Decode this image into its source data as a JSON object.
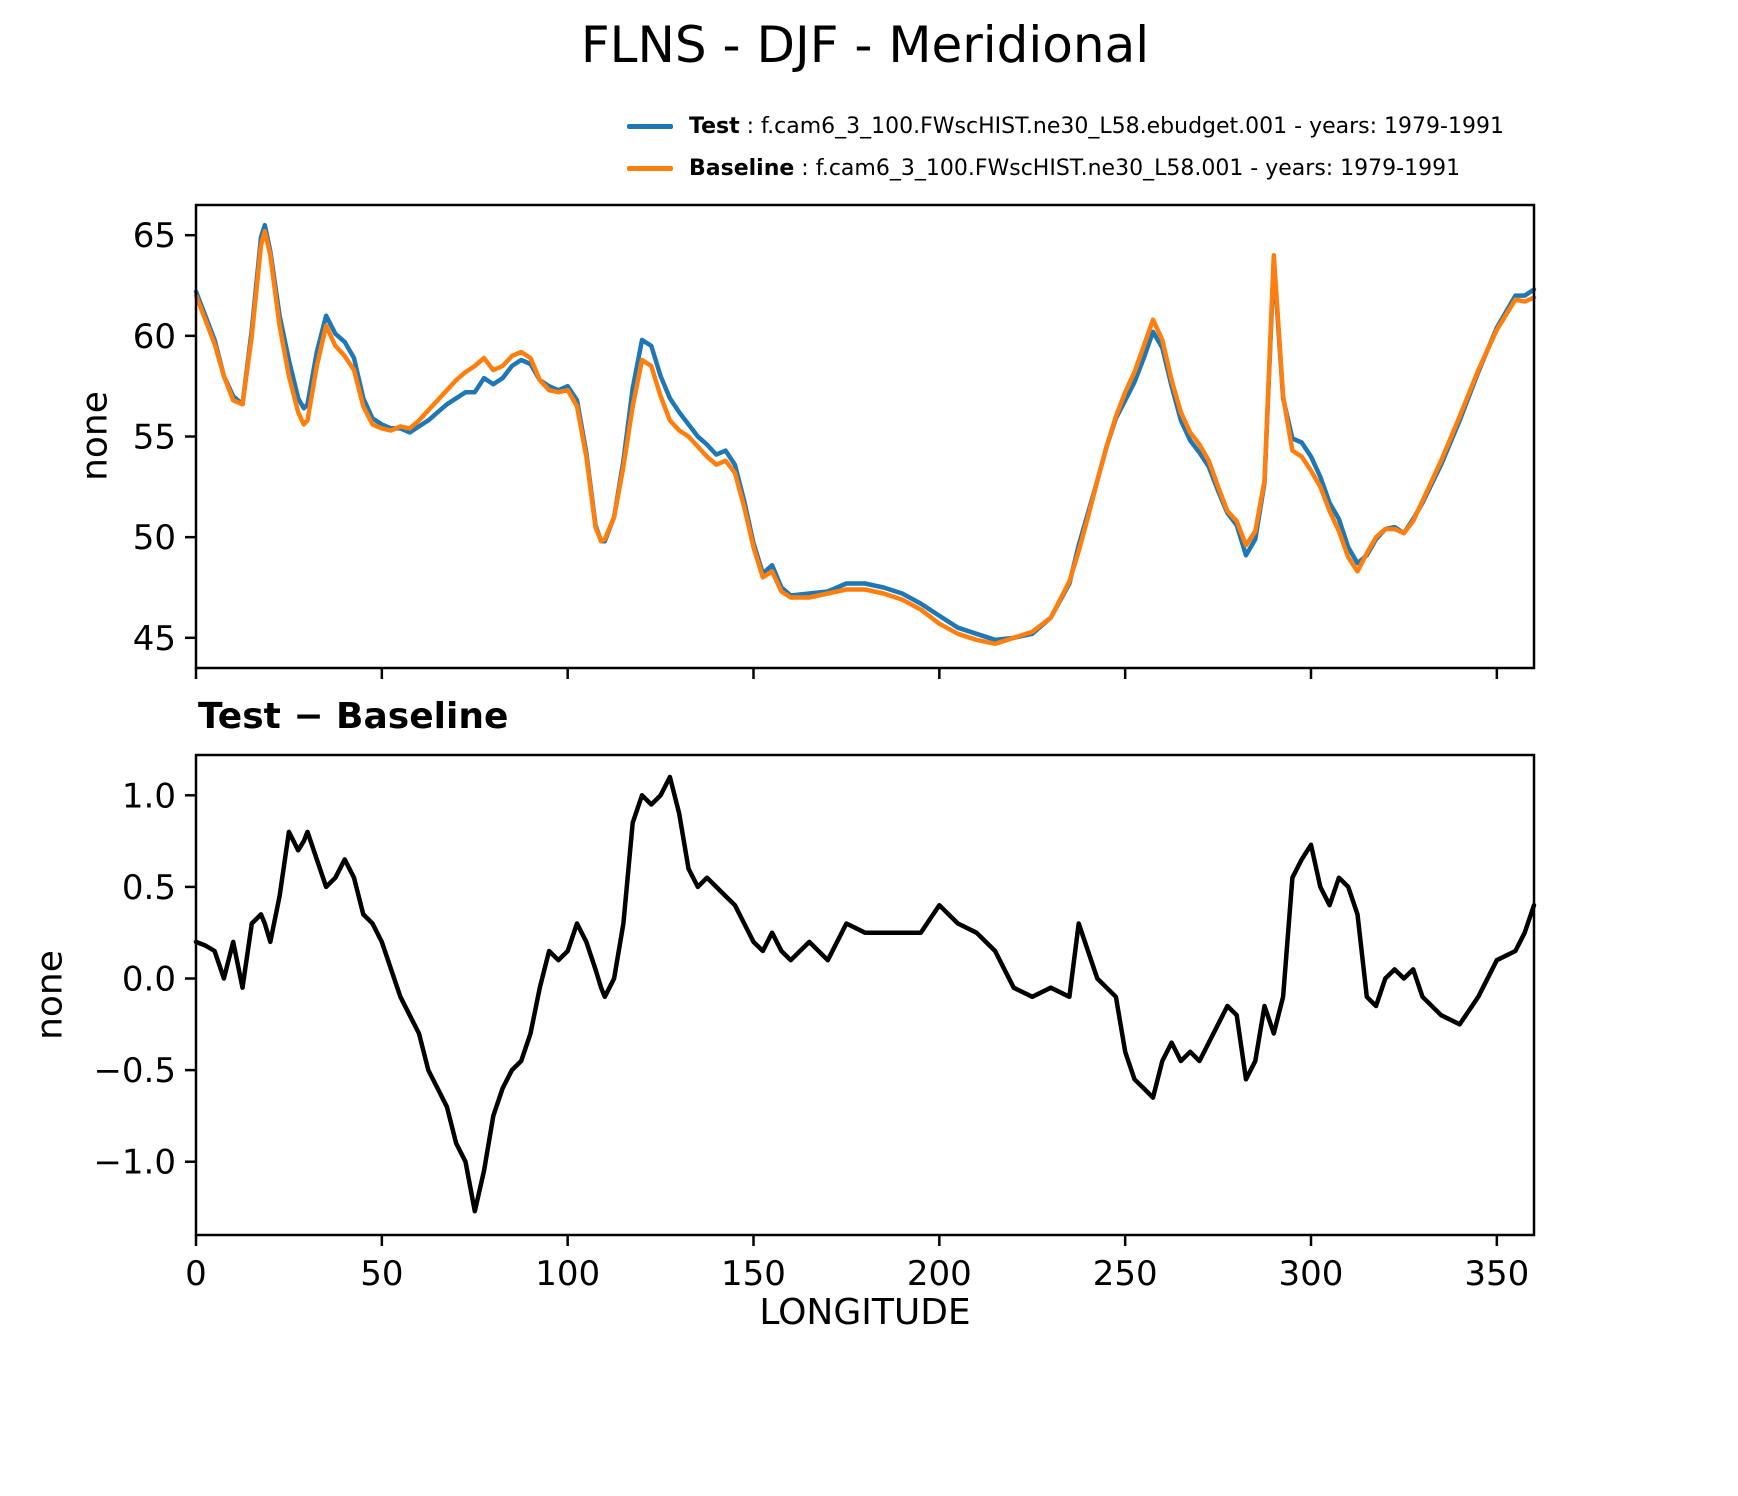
{
  "page": {
    "title": "FLNS - DJF - Meridional"
  },
  "legend": {
    "items": [
      {
        "label": "Test",
        "desc": " : f.cam6_3_100.FWscHIST.ne30_L58.ebudget.001 - years: 1979-1991",
        "color": "#1f77b4"
      },
      {
        "label": "Baseline",
        "desc": " : f.cam6_3_100.FWscHIST.ne30_L58.001 - years: 1979-1991",
        "color": "#ff7f0e"
      }
    ]
  },
  "chart_data": [
    {
      "type": "line",
      "title": "",
      "xlabel": "",
      "ylabel": "none",
      "xlim": [
        0,
        360
      ],
      "ylim": [
        43.5,
        66.5
      ],
      "xticks": [
        0,
        50,
        100,
        150,
        200,
        250,
        300,
        350
      ],
      "yticks": [
        45,
        50,
        55,
        60,
        65
      ],
      "grid": false,
      "legend_position": "top",
      "x": [
        0,
        2.5,
        5,
        7.5,
        10,
        12.5,
        15,
        17.5,
        18.5,
        20,
        22.5,
        25,
        27.5,
        29,
        30,
        32.5,
        35,
        37.5,
        40,
        42.5,
        45,
        47.5,
        50,
        52.5,
        55,
        57.5,
        60,
        62.5,
        65,
        67.5,
        70,
        72.5,
        75,
        77.5,
        80,
        82.5,
        85,
        87.5,
        90,
        92.5,
        95,
        97.5,
        100,
        102.5,
        105,
        107.5,
        109,
        110,
        112.5,
        115,
        117.5,
        120,
        122.5,
        125,
        127.5,
        130,
        132.5,
        135,
        137.5,
        140,
        142.5,
        145,
        147.5,
        150,
        152.5,
        155,
        157.5,
        160,
        165,
        170,
        175,
        180,
        185,
        190,
        195,
        200,
        205,
        210,
        215,
        220,
        225,
        230,
        235,
        237.5,
        240,
        242.5,
        245,
        247.5,
        250,
        252.5,
        255,
        257.5,
        260,
        262.5,
        265,
        267.5,
        270,
        272.5,
        275,
        277.5,
        280,
        282.5,
        285,
        287.5,
        290,
        292.5,
        295,
        297.5,
        300,
        302.5,
        305,
        307.5,
        310,
        312.5,
        315,
        317.5,
        320,
        322.5,
        325,
        327.5,
        330,
        335,
        340,
        345,
        350,
        355,
        357.5,
        360
      ],
      "series": [
        {
          "name": "Test",
          "color": "#1f77b4",
          "values": [
            62.2,
            61.0,
            59.8,
            58.0,
            57.0,
            56.6,
            60.3,
            64.9,
            65.5,
            64.2,
            61.0,
            58.8,
            56.9,
            56.4,
            56.6,
            59.2,
            61.0,
            60.1,
            59.7,
            58.9,
            56.9,
            55.9,
            55.6,
            55.4,
            55.4,
            55.2,
            55.5,
            55.8,
            56.2,
            56.6,
            56.9,
            57.2,
            57.2,
            57.9,
            57.6,
            57.9,
            58.5,
            58.8,
            58.6,
            57.8,
            57.5,
            57.3,
            57.5,
            56.8,
            54.2,
            50.6,
            49.8,
            49.8,
            51.0,
            53.8,
            57.4,
            59.8,
            59.5,
            58.0,
            56.9,
            56.2,
            55.6,
            55.0,
            54.6,
            54.1,
            54.3,
            53.6,
            51.8,
            49.7,
            48.2,
            48.6,
            47.5,
            47.1,
            47.2,
            47.3,
            47.7,
            47.7,
            47.5,
            47.2,
            46.7,
            46.1,
            45.5,
            45.2,
            44.9,
            45.0,
            45.2,
            46.0,
            47.7,
            49.6,
            51.2,
            52.8,
            54.5,
            55.9,
            56.8,
            57.7,
            58.9,
            60.2,
            59.4,
            57.5,
            55.8,
            54.8,
            54.2,
            53.5,
            52.3,
            51.2,
            50.6,
            49.1,
            49.9,
            52.7,
            63.7,
            56.9,
            54.9,
            54.7,
            54.0,
            53.0,
            51.7,
            50.9,
            49.5,
            48.7,
            49.1,
            49.9,
            50.4,
            50.5,
            50.2,
            50.9,
            51.7,
            53.6,
            55.8,
            58.2,
            60.4,
            62.0,
            62.0,
            62.3
          ]
        },
        {
          "name": "Baseline",
          "color": "#ff7f0e",
          "values": [
            62.0,
            60.8,
            59.6,
            58.0,
            56.8,
            56.6,
            60.0,
            64.5,
            65.2,
            64.0,
            60.5,
            58.0,
            56.2,
            55.6,
            55.8,
            58.5,
            60.5,
            59.5,
            59.0,
            58.3,
            56.5,
            55.6,
            55.4,
            55.3,
            55.5,
            55.4,
            55.8,
            56.3,
            56.8,
            57.3,
            57.8,
            58.2,
            58.5,
            58.9,
            58.3,
            58.5,
            59.0,
            59.2,
            58.9,
            57.8,
            57.3,
            57.2,
            57.3,
            56.5,
            54.0,
            50.5,
            49.8,
            49.9,
            51.0,
            53.5,
            56.5,
            58.8,
            58.5,
            57.0,
            55.8,
            55.3,
            55.0,
            54.5,
            54.0,
            53.6,
            53.8,
            53.2,
            51.5,
            49.5,
            48.0,
            48.3,
            47.3,
            47.0,
            47.0,
            47.2,
            47.4,
            47.4,
            47.2,
            46.9,
            46.4,
            45.7,
            45.2,
            44.9,
            44.7,
            45.0,
            45.3,
            46.0,
            47.8,
            49.3,
            51.0,
            52.8,
            54.5,
            56.0,
            57.2,
            58.2,
            59.5,
            60.8,
            59.8,
            57.8,
            56.2,
            55.2,
            54.6,
            53.8,
            52.5,
            51.3,
            50.8,
            49.6,
            50.3,
            52.8,
            64.0,
            57.0,
            54.3,
            54.0,
            53.3,
            52.5,
            51.3,
            50.3,
            49.0,
            48.3,
            49.2,
            50.0,
            50.4,
            50.4,
            50.2,
            50.8,
            51.8,
            53.8,
            56.0,
            58.3,
            60.3,
            61.8,
            61.7,
            61.9
          ]
        }
      ]
    },
    {
      "type": "line",
      "title": "Test − Baseline",
      "xlabel": "LONGITUDE",
      "ylabel": "none",
      "xlim": [
        0,
        360
      ],
      "ylim": [
        -1.4,
        1.22
      ],
      "xticks": [
        0,
        50,
        100,
        150,
        200,
        250,
        300,
        350
      ],
      "yticks": [
        -1.0,
        -0.5,
        0.0,
        0.5,
        1.0
      ],
      "grid": false,
      "x": [
        0,
        2.5,
        5,
        7.5,
        10,
        12.5,
        15,
        17.5,
        18.5,
        20,
        22.5,
        25,
        27.5,
        29,
        30,
        32.5,
        35,
        37.5,
        40,
        42.5,
        45,
        47.5,
        50,
        52.5,
        55,
        57.5,
        60,
        62.5,
        65,
        67.5,
        70,
        72.5,
        75,
        77.5,
        80,
        82.5,
        85,
        87.5,
        90,
        92.5,
        95,
        97.5,
        100,
        102.5,
        105,
        107.5,
        109,
        110,
        112.5,
        115,
        117.5,
        120,
        122.5,
        125,
        127.5,
        130,
        132.5,
        135,
        137.5,
        140,
        142.5,
        145,
        147.5,
        150,
        152.5,
        155,
        157.5,
        160,
        165,
        170,
        175,
        180,
        185,
        190,
        195,
        200,
        205,
        210,
        215,
        220,
        225,
        230,
        235,
        237.5,
        240,
        242.5,
        245,
        247.5,
        250,
        252.5,
        255,
        257.5,
        260,
        262.5,
        265,
        267.5,
        270,
        272.5,
        275,
        277.5,
        280,
        282.5,
        285,
        287.5,
        290,
        292.5,
        295,
        297.5,
        300,
        302.5,
        305,
        307.5,
        310,
        312.5,
        315,
        317.5,
        320,
        322.5,
        325,
        327.5,
        330,
        335,
        340,
        345,
        350,
        355,
        357.5,
        360
      ],
      "series": [
        {
          "name": "Test − Baseline",
          "color": "#000000",
          "values": [
            0.2,
            0.18,
            0.15,
            0.0,
            0.2,
            -0.05,
            0.3,
            0.35,
            0.3,
            0.2,
            0.45,
            0.8,
            0.7,
            0.75,
            0.8,
            0.65,
            0.5,
            0.55,
            0.65,
            0.55,
            0.35,
            0.3,
            0.2,
            0.05,
            -0.1,
            -0.2,
            -0.3,
            -0.5,
            -0.6,
            -0.7,
            -0.9,
            -1.0,
            -1.27,
            -1.05,
            -0.75,
            -0.6,
            -0.5,
            -0.45,
            -0.3,
            -0.05,
            0.15,
            0.1,
            0.15,
            0.3,
            0.2,
            0.05,
            -0.05,
            -0.1,
            0.0,
            0.3,
            0.85,
            1.0,
            0.95,
            1.0,
            1.1,
            0.9,
            0.6,
            0.5,
            0.55,
            0.5,
            0.45,
            0.4,
            0.3,
            0.2,
            0.15,
            0.25,
            0.15,
            0.1,
            0.2,
            0.1,
            0.3,
            0.25,
            0.25,
            0.25,
            0.25,
            0.4,
            0.3,
            0.25,
            0.15,
            -0.05,
            -0.1,
            -0.05,
            -0.1,
            0.3,
            0.15,
            0.0,
            -0.05,
            -0.1,
            -0.4,
            -0.55,
            -0.6,
            -0.65,
            -0.45,
            -0.35,
            -0.45,
            -0.4,
            -0.45,
            -0.35,
            -0.25,
            -0.15,
            -0.2,
            -0.55,
            -0.45,
            -0.15,
            -0.3,
            -0.1,
            0.55,
            0.65,
            0.73,
            0.5,
            0.4,
            0.55,
            0.5,
            0.35,
            -0.1,
            -0.15,
            0.0,
            0.05,
            0.0,
            0.05,
            -0.1,
            -0.2,
            -0.25,
            -0.1,
            0.1,
            0.15,
            0.25,
            0.4
          ]
        }
      ]
    }
  ]
}
